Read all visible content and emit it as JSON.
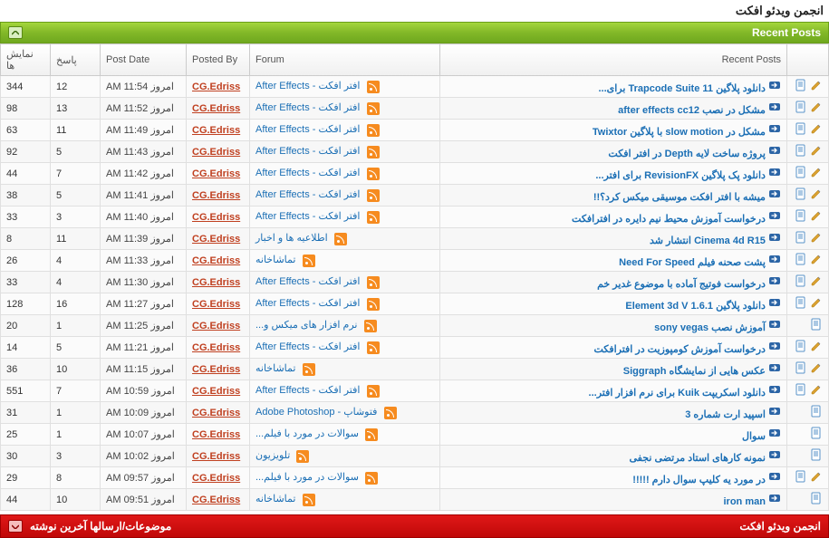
{
  "page_title": "انجمن ویدئو افکت",
  "header": {
    "title": "Recent Posts"
  },
  "columns": {
    "recent_posts": "Recent Posts",
    "forum": "Forum",
    "posted_by": "Posted By",
    "post_date": "Post Date",
    "replies": "پاسخ",
    "views": "نمایش ها"
  },
  "footer": {
    "right": "انجمن ویدئو افکت",
    "left": "موضوعات/ارسالها آخرین نوشته"
  },
  "icons": {
    "pencil": true,
    "doc": true,
    "arrow": true
  },
  "rows": [
    {
      "has_pencil": true,
      "title": "دانلود پلاگین Trapcode Suite 11 برای...",
      "forum": "افتر افکت - After Effects",
      "by": "CG.Edriss",
      "date": "امروز 11:54 AM",
      "replies": "12",
      "views": "344"
    },
    {
      "has_pencil": true,
      "title": "مشکل در نصب after effects cc12",
      "forum": "افتر افکت - After Effects",
      "by": "CG.Edriss",
      "date": "امروز 11:52 AM",
      "replies": "13",
      "views": "98"
    },
    {
      "has_pencil": true,
      "title": "مشکل در slow motion با پلاگین Twixtor",
      "forum": "افتر افکت - After Effects",
      "by": "CG.Edriss",
      "date": "امروز 11:49 AM",
      "replies": "11",
      "views": "63"
    },
    {
      "has_pencil": true,
      "title": "پروژه ساخت لایه Depth در افتر افکت",
      "forum": "افتر افکت - After Effects",
      "by": "CG.Edriss",
      "date": "امروز 11:43 AM",
      "replies": "5",
      "views": "92"
    },
    {
      "has_pencil": true,
      "title": "دانلود پک پلاگین RevisionFX برای افتر...",
      "forum": "افتر افکت - After Effects",
      "by": "CG.Edriss",
      "date": "امروز 11:42 AM",
      "replies": "7",
      "views": "44"
    },
    {
      "has_pencil": true,
      "title": "میشه با افتر افکت موسیقی میکس کرد؟!!",
      "forum": "افتر افکت - After Effects",
      "by": "CG.Edriss",
      "date": "امروز 11:41 AM",
      "replies": "5",
      "views": "38"
    },
    {
      "has_pencil": true,
      "title": "درخواست آموزش محیط نیم دایره در افترافکت",
      "forum": "افتر افکت - After Effects",
      "by": "CG.Edriss",
      "date": "امروز 11:40 AM",
      "replies": "3",
      "views": "33"
    },
    {
      "has_pencil": true,
      "title": "Cinema 4d R15 انتشار شد",
      "forum": "اطلاعیه ها و اخبار",
      "by": "CG.Edriss",
      "date": "امروز 11:39 AM",
      "replies": "11",
      "views": "8"
    },
    {
      "has_pencil": true,
      "title": "پشت صحنه فیلم Need For Speed",
      "forum": "تماشاخانه",
      "by": "CG.Edriss",
      "date": "امروز 11:33 AM",
      "replies": "4",
      "views": "26"
    },
    {
      "has_pencil": true,
      "title": "درخواست فوتیج آماده با موضوع غدیر خم",
      "forum": "افتر افکت - After Effects",
      "by": "CG.Edriss",
      "date": "امروز 11:30 AM",
      "replies": "4",
      "views": "33"
    },
    {
      "has_pencil": true,
      "title": "دانلود پلاگین Element 3d V 1.6.1",
      "forum": "افتر افکت - After Effects",
      "by": "CG.Edriss",
      "date": "امروز 11:27 AM",
      "replies": "16",
      "views": "128"
    },
    {
      "has_pencil": false,
      "title": "آموزش نصب sony vegas",
      "forum": "نرم افزار های میکس و...",
      "by": "CG.Edriss",
      "date": "امروز 11:25 AM",
      "replies": "1",
      "views": "20"
    },
    {
      "has_pencil": true,
      "title": "درخواست آموزش کومپوزیت در افترافکت",
      "forum": "افتر افکت - After Effects",
      "by": "CG.Edriss",
      "date": "امروز 11:21 AM",
      "replies": "5",
      "views": "14"
    },
    {
      "has_pencil": true,
      "title": "عکس هایی از نمایشگاه Siggraph",
      "forum": "تماشاخانه",
      "by": "CG.Edriss",
      "date": "امروز 11:15 AM",
      "replies": "10",
      "views": "36"
    },
    {
      "has_pencil": true,
      "title": "دانلود اسکریپت Kuik برای نرم افزار افتر...",
      "forum": "افتر افکت - After Effects",
      "by": "CG.Edriss",
      "date": "امروز 10:59 AM",
      "replies": "7",
      "views": "551"
    },
    {
      "has_pencil": false,
      "title": "اسپید ارت شماره 3",
      "forum": "فتوشاپ - Adobe Photoshop",
      "by": "CG.Edriss",
      "date": "امروز 10:09 AM",
      "replies": "1",
      "views": "31"
    },
    {
      "has_pencil": false,
      "title": "سوال",
      "forum": "سوالات در مورد با فیلم...",
      "by": "CG.Edriss",
      "date": "امروز 10:07 AM",
      "replies": "1",
      "views": "25"
    },
    {
      "has_pencil": false,
      "title": "نمونه کارهای استاد مرتضی نجفی",
      "forum": "تلویزیون",
      "by": "CG.Edriss",
      "date": "امروز 10:02 AM",
      "replies": "3",
      "views": "30"
    },
    {
      "has_pencil": true,
      "title": "در مورد یه کلیپ سوال دارم !!!!!",
      "forum": "سوالات در مورد با فیلم...",
      "by": "CG.Edriss",
      "date": "امروز 09:57 AM",
      "replies": "8",
      "views": "29"
    },
    {
      "has_pencil": false,
      "title": "iron man",
      "forum": "تماشاخانه",
      "by": "CG.Edriss",
      "date": "امروز 09:51 AM",
      "replies": "10",
      "views": "44"
    }
  ]
}
